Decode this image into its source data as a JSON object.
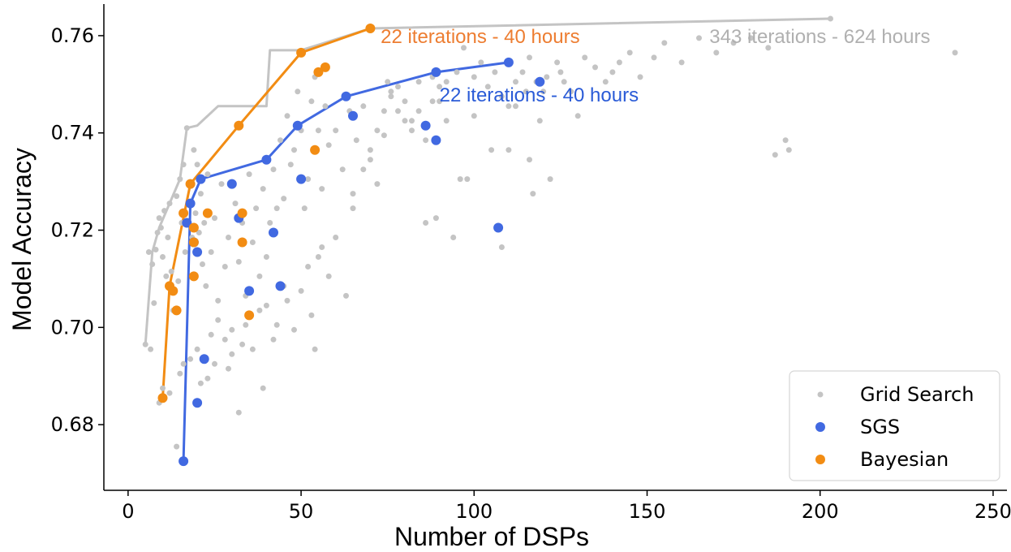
{
  "chart_data": {
    "type": "scatter",
    "title": "",
    "xlabel": "Number of DSPs",
    "ylabel": "Model Accuracy",
    "xlim": [
      -7,
      254
    ],
    "ylim": [
      0.6665,
      0.7665
    ],
    "xticks": [
      0,
      50,
      100,
      150,
      200,
      250
    ],
    "yticks": [
      0.68,
      0.7,
      0.72,
      0.74,
      0.76
    ],
    "grid": false,
    "legend_position": "bottom-right",
    "colors": {
      "grid": "#c4c4c4",
      "sgs": "#4169e1",
      "bayesian": "#f28c13",
      "annotation_orange": "#ed7d31",
      "annotation_blue": "#2a5bd7",
      "annotation_gray": "#b0b0b0"
    },
    "series": [
      {
        "name": "Grid Search",
        "color": "#c4c4c4",
        "marker_size": "small",
        "points": [
          [
            5,
            0.6965
          ],
          [
            6,
            0.7155
          ],
          [
            6.5,
            0.6955
          ],
          [
            7,
            0.713
          ],
          [
            7.5,
            0.705
          ],
          [
            8,
            0.716
          ],
          [
            8.5,
            0.7195
          ],
          [
            9,
            0.7225
          ],
          [
            9.5,
            0.7205
          ],
          [
            10,
            0.7145
          ],
          [
            10.5,
            0.724
          ],
          [
            11,
            0.7105
          ],
          [
            11.5,
            0.7185
          ],
          [
            12,
            0.7255
          ],
          [
            12.5,
            0.7115
          ],
          [
            13,
            0.7035
          ],
          [
            14,
            0.727
          ],
          [
            14.5,
            0.7095
          ],
          [
            15,
            0.7305
          ],
          [
            15.5,
            0.7215
          ],
          [
            16,
            0.7335
          ],
          [
            16.5,
            0.7155
          ],
          [
            17,
            0.741
          ],
          [
            17.5,
            0.7215
          ],
          [
            18,
            0.7295
          ],
          [
            18.5,
            0.7185
          ],
          [
            19,
            0.7365
          ],
          [
            19.5,
            0.7235
          ],
          [
            20,
            0.7335
          ],
          [
            20.5,
            0.7195
          ],
          [
            21,
            0.7275
          ],
          [
            21.5,
            0.713
          ],
          [
            22,
            0.7215
          ],
          [
            22.5,
            0.7085
          ],
          [
            23,
            0.7315
          ],
          [
            24,
            0.7155
          ],
          [
            25,
            0.7225
          ],
          [
            26,
            0.7055
          ],
          [
            27,
            0.7295
          ],
          [
            28,
            0.7125
          ],
          [
            29,
            0.7185
          ],
          [
            30,
            0.6995
          ],
          [
            31,
            0.7255
          ],
          [
            32,
            0.7135
          ],
          [
            33,
            0.7215
          ],
          [
            34,
            0.7065
          ],
          [
            35,
            0.7315
          ],
          [
            36,
            0.7175
          ],
          [
            37,
            0.7245
          ],
          [
            38,
            0.7105
          ],
          [
            39,
            0.7285
          ],
          [
            40,
            0.7145
          ],
          [
            41,
            0.7215
          ],
          [
            42,
            0.7325
          ],
          [
            43,
            0.7245
          ],
          [
            44,
            0.7385
          ],
          [
            45,
            0.7265
          ],
          [
            46,
            0.7435
          ],
          [
            47,
            0.7335
          ],
          [
            48,
            0.7365
          ],
          [
            49,
            0.7485
          ],
          [
            50,
            0.7405
          ],
          [
            51,
            0.7245
          ],
          [
            52,
            0.7305
          ],
          [
            53,
            0.7465
          ],
          [
            54,
            0.7515
          ],
          [
            55,
            0.7405
          ],
          [
            56,
            0.7285
          ],
          [
            57,
            0.7455
          ],
          [
            58,
            0.7375
          ],
          [
            60,
            0.7405
          ],
          [
            62,
            0.7325
          ],
          [
            64,
            0.7445
          ],
          [
            65,
            0.7275
          ],
          [
            66,
            0.7385
          ],
          [
            68,
            0.7455
          ],
          [
            70,
            0.7365
          ],
          [
            72,
            0.7295
          ],
          [
            74,
            0.7395
          ],
          [
            75,
            0.7505
          ],
          [
            76,
            0.7485
          ],
          [
            78,
            0.7445
          ],
          [
            80,
            0.7465
          ],
          [
            82,
            0.7425
          ],
          [
            84,
            0.7505
          ],
          [
            86,
            0.7215
          ],
          [
            88,
            0.7515
          ],
          [
            89,
            0.7225
          ],
          [
            90,
            0.7465
          ],
          [
            92,
            0.7425
          ],
          [
            94,
            0.7185
          ],
          [
            96,
            0.7305
          ],
          [
            98,
            0.7305
          ],
          [
            100,
            0.7435
          ],
          [
            105,
            0.7365
          ],
          [
            108,
            0.7165
          ],
          [
            110,
            0.7365
          ],
          [
            112,
            0.7455
          ],
          [
            115,
            0.7485
          ],
          [
            116,
            0.7345
          ],
          [
            117,
            0.7275
          ],
          [
            119,
            0.7425
          ],
          [
            120,
            0.7485
          ],
          [
            122,
            0.7305
          ],
          [
            125,
            0.7525
          ],
          [
            130,
            0.7435
          ],
          [
            140,
            0.7525
          ],
          [
            152,
            0.7555
          ],
          [
            165,
            0.7595
          ],
          [
            187,
            0.7355
          ],
          [
            190,
            0.7385
          ],
          [
            191,
            0.7365
          ],
          [
            203,
            0.7635
          ],
          [
            239,
            0.7565
          ],
          [
            9,
            0.6845
          ],
          [
            10,
            0.6875
          ],
          [
            12,
            0.6865
          ],
          [
            14,
            0.6755
          ],
          [
            15,
            0.6905
          ],
          [
            16,
            0.6925
          ],
          [
            18,
            0.6935
          ],
          [
            20,
            0.6955
          ],
          [
            21,
            0.6885
          ],
          [
            23,
            0.6895
          ],
          [
            24,
            0.6985
          ],
          [
            25,
            0.6925
          ],
          [
            26,
            0.7015
          ],
          [
            28,
            0.6975
          ],
          [
            29,
            0.6915
          ],
          [
            30,
            0.6945
          ],
          [
            32,
            0.6825
          ],
          [
            33,
            0.6965
          ],
          [
            34,
            0.7005
          ],
          [
            36,
            0.6955
          ],
          [
            38,
            0.7035
          ],
          [
            39,
            0.6875
          ],
          [
            40,
            0.7045
          ],
          [
            42,
            0.6975
          ],
          [
            43,
            0.7005
          ],
          [
            45,
            0.7085
          ],
          [
            46,
            0.7055
          ],
          [
            48,
            0.6995
          ],
          [
            50,
            0.7075
          ],
          [
            52,
            0.7125
          ],
          [
            53,
            0.7025
          ],
          [
            54,
            0.6955
          ],
          [
            55,
            0.7145
          ],
          [
            56,
            0.7165
          ],
          [
            58,
            0.7105
          ],
          [
            60,
            0.7185
          ],
          [
            63,
            0.7065
          ],
          [
            65,
            0.7245
          ],
          [
            68,
            0.7325
          ],
          [
            70,
            0.7345
          ],
          [
            72,
            0.7405
          ],
          [
            74,
            0.7445
          ],
          [
            76,
            0.7475
          ],
          [
            78,
            0.7495
          ],
          [
            80,
            0.7425
          ],
          [
            82,
            0.7405
          ],
          [
            84,
            0.7445
          ],
          [
            86,
            0.7385
          ],
          [
            88,
            0.7465
          ],
          [
            90,
            0.7495
          ],
          [
            92,
            0.7505
          ],
          [
            95,
            0.7525
          ],
          [
            97,
            0.7575
          ],
          [
            100,
            0.7515
          ],
          [
            102,
            0.7545
          ],
          [
            104,
            0.7495
          ],
          [
            106,
            0.7525
          ],
          [
            108,
            0.7475
          ],
          [
            110,
            0.7455
          ],
          [
            112,
            0.7505
          ],
          [
            114,
            0.7525
          ],
          [
            116,
            0.7555
          ],
          [
            118,
            0.7505
          ],
          [
            121,
            0.7515
          ],
          [
            124,
            0.7545
          ],
          [
            126,
            0.7505
          ],
          [
            128,
            0.7485
          ],
          [
            132,
            0.7555
          ],
          [
            135,
            0.7535
          ],
          [
            138,
            0.7505
          ],
          [
            142,
            0.7545
          ],
          [
            145,
            0.7565
          ],
          [
            148,
            0.7515
          ],
          [
            155,
            0.7585
          ],
          [
            160,
            0.7545
          ],
          [
            170,
            0.7565
          ],
          [
            175,
            0.7585
          ],
          [
            180,
            0.7595
          ],
          [
            185,
            0.7575
          ]
        ]
      },
      {
        "name": "SGS",
        "color": "#4169e1",
        "marker_size": "large",
        "points": [
          [
            16,
            0.6725
          ],
          [
            17,
            0.7215
          ],
          [
            18,
            0.7255
          ],
          [
            19,
            0.7175
          ],
          [
            20,
            0.7155
          ],
          [
            21,
            0.7305
          ],
          [
            20,
            0.6845
          ],
          [
            22,
            0.6935
          ],
          [
            30,
            0.7295
          ],
          [
            32,
            0.7225
          ],
          [
            35,
            0.7075
          ],
          [
            40,
            0.7345
          ],
          [
            42,
            0.7195
          ],
          [
            44,
            0.7085
          ],
          [
            49,
            0.7415
          ],
          [
            50,
            0.7305
          ],
          [
            63,
            0.7475
          ],
          [
            65,
            0.7435
          ],
          [
            86,
            0.7415
          ],
          [
            89,
            0.7385
          ],
          [
            89,
            0.7525
          ],
          [
            107,
            0.7205
          ],
          [
            110,
            0.7545
          ],
          [
            119,
            0.7505
          ]
        ]
      },
      {
        "name": "Bayesian",
        "color": "#f28c13",
        "marker_size": "large",
        "points": [
          [
            10,
            0.6855
          ],
          [
            12,
            0.7085
          ],
          [
            13,
            0.7075
          ],
          [
            14,
            0.7035
          ],
          [
            16,
            0.7235
          ],
          [
            18,
            0.7295
          ],
          [
            19,
            0.7205
          ],
          [
            19,
            0.7175
          ],
          [
            19,
            0.7105
          ],
          [
            23,
            0.7235
          ],
          [
            32,
            0.7415
          ],
          [
            33,
            0.7235
          ],
          [
            33,
            0.7175
          ],
          [
            35,
            0.7025
          ],
          [
            50,
            0.7565
          ],
          [
            54,
            0.7365
          ],
          [
            55,
            0.7525
          ],
          [
            57,
            0.7535
          ],
          [
            70,
            0.7615
          ]
        ]
      }
    ],
    "frontiers": [
      {
        "series": "Grid Search",
        "color": "#c4c4c4",
        "points": [
          [
            5,
            0.6965
          ],
          [
            7,
            0.7155
          ],
          [
            9,
            0.7205
          ],
          [
            12,
            0.7255
          ],
          [
            15,
            0.7305
          ],
          [
            17,
            0.741
          ],
          [
            20,
            0.7415
          ],
          [
            26,
            0.7455
          ],
          [
            40,
            0.7455
          ],
          [
            41,
            0.757
          ],
          [
            50,
            0.757
          ],
          [
            70,
            0.7615
          ],
          [
            203,
            0.7635
          ]
        ]
      },
      {
        "series": "SGS",
        "color": "#4169e1",
        "points": [
          [
            16,
            0.6725
          ],
          [
            18,
            0.7255
          ],
          [
            21,
            0.7305
          ],
          [
            40,
            0.7345
          ],
          [
            49,
            0.7415
          ],
          [
            63,
            0.7475
          ],
          [
            89,
            0.7525
          ],
          [
            110,
            0.7545
          ]
        ]
      },
      {
        "series": "Bayesian",
        "color": "#f28c13",
        "points": [
          [
            10,
            0.6855
          ],
          [
            12,
            0.7085
          ],
          [
            18,
            0.7295
          ],
          [
            32,
            0.7415
          ],
          [
            50,
            0.7565
          ],
          [
            70,
            0.7615
          ]
        ]
      }
    ],
    "annotations": [
      {
        "text": "22 iterations - 40 hours",
        "x": 73,
        "y": 0.7585,
        "color": "#ed7d31"
      },
      {
        "text": "22 iterations - 40 hours",
        "x": 90,
        "y": 0.7465,
        "color": "#2a5bd7"
      },
      {
        "text": "343 iterations - 624 hours",
        "x": 168,
        "y": 0.7585,
        "color": "#b0b0b0"
      }
    ],
    "legend": [
      {
        "label": "Grid Search",
        "color": "#c4c4c4",
        "marker_size": "small"
      },
      {
        "label": "SGS",
        "color": "#4169e1",
        "marker_size": "large"
      },
      {
        "label": "Bayesian",
        "color": "#f28c13",
        "marker_size": "large"
      }
    ]
  }
}
